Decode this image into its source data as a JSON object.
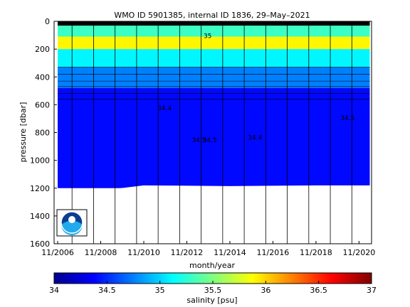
{
  "chart_data": {
    "type": "heatmap",
    "title": "WMO ID 5901385, internal ID 1836, 29–May–2021",
    "xlabel": "month/year",
    "ylabel": "pressure [dbar]",
    "x_tick_labels": [
      "11/2006",
      "11/2008",
      "11/2010",
      "11/2012",
      "11/2014",
      "11/2016",
      "11/2018",
      "11/2020"
    ],
    "y_tick_labels": [
      "0",
      "200",
      "400",
      "600",
      "800",
      "1000",
      "1200",
      "1400",
      "1600"
    ],
    "ylim": [
      0,
      1600
    ],
    "y_reversed": true,
    "colorbar": {
      "label": "salinity [psu]",
      "range": [
        34,
        37
      ],
      "tick_labels": [
        "34",
        "34.5",
        "35",
        "35.5",
        "36",
        "36.5",
        "37"
      ],
      "colormap": "jet"
    },
    "contour_labels": [
      "34.4",
      "34.5",
      "34.5",
      "34.4",
      "35",
      "34.5"
    ],
    "data_depth_bottom": [
      {
        "time": "11/2006",
        "pressure": 1200
      },
      {
        "time": "06/2007",
        "pressure": 1210
      },
      {
        "time": "07/2009",
        "pressure": 1205
      },
      {
        "time": "11/2010",
        "pressure": 1180
      },
      {
        "time": "11/2014",
        "pressure": 1185
      },
      {
        "time": "11/2018",
        "pressure": 1180
      },
      {
        "time": "05/2021",
        "pressure": 1180
      }
    ],
    "layers": [
      {
        "p_top": 0,
        "p_bot": 110,
        "salinity": 35.3
      },
      {
        "p_top": 110,
        "p_bot": 200,
        "salinity": 35.9
      },
      {
        "p_top": 200,
        "p_bot": 330,
        "salinity": 35.1
      },
      {
        "p_top": 330,
        "p_bot": 480,
        "salinity": 34.75
      },
      {
        "p_top": 480,
        "p_bot": 1200,
        "salinity": 34.4
      }
    ],
    "logo": "noaa-logo"
  }
}
